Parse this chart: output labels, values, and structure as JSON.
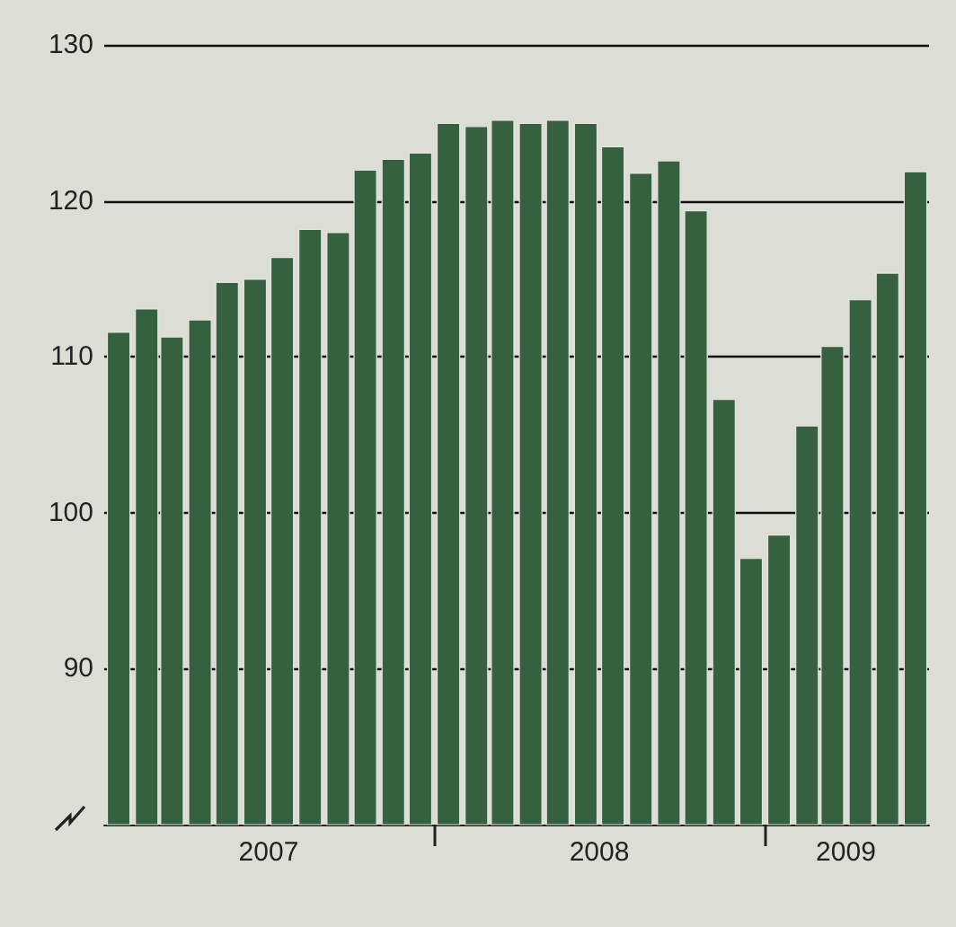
{
  "chart_data": {
    "type": "bar",
    "color": "#356140",
    "x": [
      "2007-01",
      "2007-02",
      "2007-03",
      "2007-04",
      "2007-05",
      "2007-06",
      "2007-07",
      "2007-08",
      "2007-09",
      "2007-10",
      "2007-11",
      "2007-12",
      "2008-01",
      "2008-02",
      "2008-03",
      "2008-04",
      "2008-05",
      "2008-06",
      "2008-07",
      "2008-08",
      "2008-09",
      "2008-10",
      "2008-11",
      "2008-12",
      "2009-01",
      "2009-02",
      "2009-03",
      "2009-04",
      "2009-05",
      "2009-06"
    ],
    "values": [
      111.6,
      113.1,
      111.3,
      112.4,
      114.8,
      115.0,
      116.4,
      118.2,
      118.0,
      122.0,
      122.7,
      123.1,
      125.0,
      124.8,
      125.2,
      125.0,
      125.2,
      125.0,
      123.5,
      121.8,
      122.6,
      119.4,
      107.3,
      97.1,
      98.6,
      105.6,
      110.7,
      113.7,
      115.4,
      121.9
    ],
    "xlim": [
      "2006-12-16",
      "2009-06-16"
    ],
    "xticks": [
      {
        "value": "2007-06-16",
        "label": "2007"
      },
      {
        "value": "2007-12-16",
        "label": null
      },
      {
        "value": "2008-06-16",
        "label": "2008"
      },
      {
        "value": "2008-12-16",
        "label": null
      },
      {
        "value": "2009-03-16",
        "label": "2009"
      }
    ],
    "ylim": [
      80,
      130
    ],
    "yticks": [
      90,
      100,
      110,
      120,
      130
    ],
    "grid": "y"
  }
}
